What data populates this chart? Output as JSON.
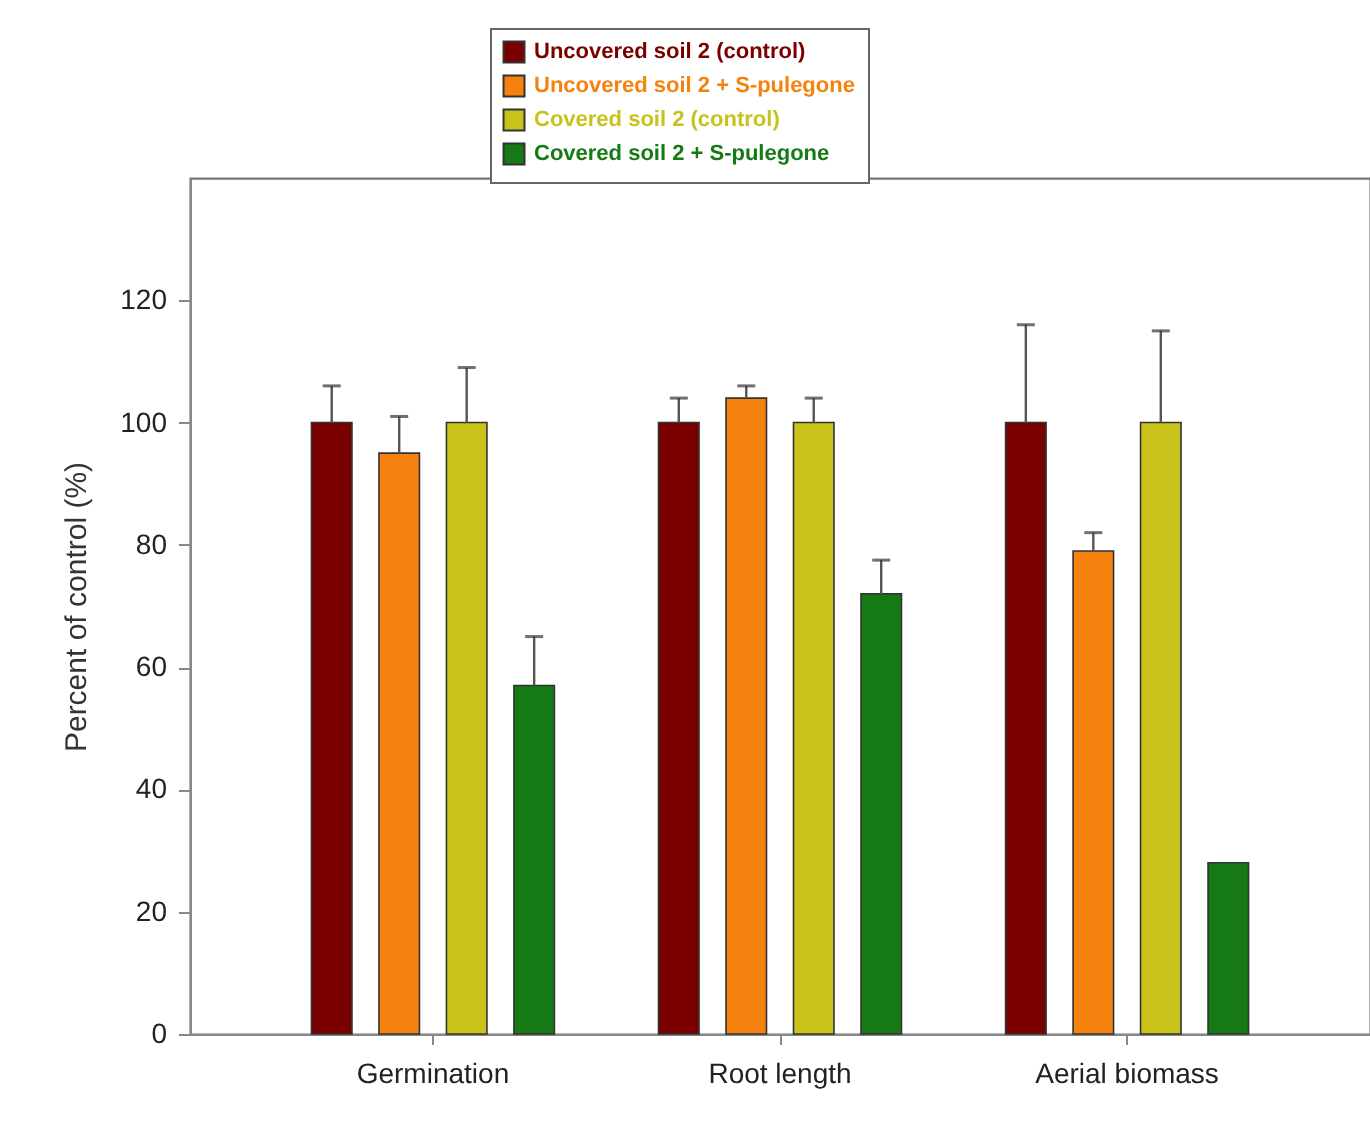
{
  "chart_data": {
    "type": "bar",
    "ylabel": "Percent of control (%)",
    "categories": [
      "Germination",
      "Root length",
      "Aerial biomass"
    ],
    "series": [
      {
        "name": "Uncovered soil 2 (control)",
        "color": "#7a0000",
        "values": [
          100,
          100,
          100
        ],
        "errors": [
          [
            100,
            106
          ],
          [
            100,
            104
          ],
          [
            100,
            116
          ]
        ]
      },
      {
        "name": "Uncovered soil 2 + S-pulegone",
        "color": "#f5820f",
        "values": [
          95,
          104,
          79
        ],
        "errors": [
          [
            95,
            101
          ],
          [
            104,
            106
          ],
          [
            79,
            82
          ]
        ]
      },
      {
        "name": "Covered soil 2 (control)",
        "color": "#c8c21a",
        "values": [
          100,
          100,
          100
        ],
        "errors": [
          [
            100,
            109
          ],
          [
            100,
            104
          ],
          [
            100,
            115
          ]
        ]
      },
      {
        "name": "Covered soil 2 + S-pulegone",
        "color": "#157a15",
        "values": [
          57,
          72,
          28
        ],
        "errors": [
          [
            57,
            65
          ],
          [
            72,
            77.5
          ],
          null
        ]
      }
    ],
    "ylim": [
      0,
      140
    ],
    "yticks": [
      0,
      20,
      40,
      60,
      80,
      100,
      120
    ],
    "grid": false,
    "legend": "top"
  }
}
